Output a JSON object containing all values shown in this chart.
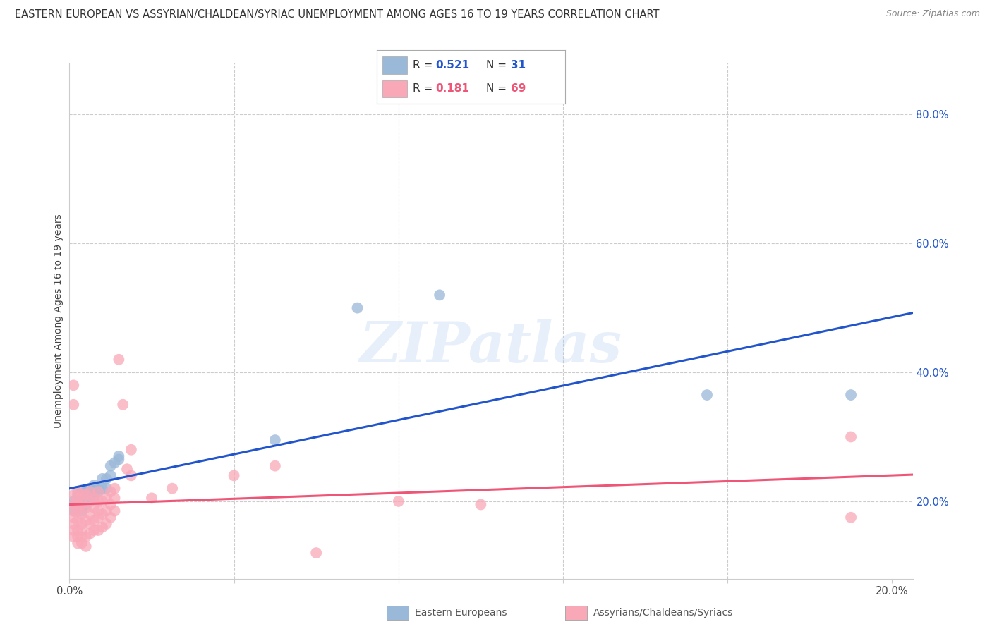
{
  "title": "EASTERN EUROPEAN VS ASSYRIAN/CHALDEAN/SYRIAC UNEMPLOYMENT AMONG AGES 16 TO 19 YEARS CORRELATION CHART",
  "source": "Source: ZipAtlas.com",
  "ylabel": "Unemployment Among Ages 16 to 19 years",
  "right_ytick_vals": [
    0.2,
    0.4,
    0.6,
    0.8
  ],
  "right_ytick_labels": [
    "20.0%",
    "40.0%",
    "60.0%",
    "80.0%"
  ],
  "watermark": "ZIPatlas",
  "legend_blue_R": "0.521",
  "legend_blue_N": "31",
  "legend_pink_R": "0.181",
  "legend_pink_N": "69",
  "legend_label_blue": "Eastern Europeans",
  "legend_label_pink": "Assyrians/Chaldeans/Syriacs",
  "blue_scatter_color": "#9AB8D8",
  "pink_scatter_color": "#F9A8B8",
  "blue_line_color": "#2255CC",
  "pink_line_color": "#EE5577",
  "background_color": "#FFFFFF",
  "grid_color": "#CCCCCC",
  "title_fontsize": 10.5,
  "blue_x": [
    0.001,
    0.001,
    0.002,
    0.002,
    0.003,
    0.003,
    0.003,
    0.004,
    0.004,
    0.005,
    0.005,
    0.005,
    0.006,
    0.006,
    0.006,
    0.007,
    0.007,
    0.008,
    0.008,
    0.009,
    0.009,
    0.01,
    0.01,
    0.011,
    0.012,
    0.012,
    0.05,
    0.07,
    0.09,
    0.155,
    0.19
  ],
  "blue_y": [
    0.185,
    0.2,
    0.195,
    0.21,
    0.185,
    0.205,
    0.215,
    0.195,
    0.215,
    0.2,
    0.215,
    0.22,
    0.205,
    0.215,
    0.225,
    0.215,
    0.22,
    0.22,
    0.235,
    0.22,
    0.235,
    0.24,
    0.255,
    0.26,
    0.265,
    0.27,
    0.295,
    0.5,
    0.52,
    0.365,
    0.365
  ],
  "pink_x": [
    0.001,
    0.001,
    0.001,
    0.001,
    0.001,
    0.001,
    0.001,
    0.001,
    0.001,
    0.002,
    0.002,
    0.002,
    0.002,
    0.002,
    0.002,
    0.002,
    0.002,
    0.003,
    0.003,
    0.003,
    0.003,
    0.003,
    0.003,
    0.003,
    0.004,
    0.004,
    0.004,
    0.004,
    0.004,
    0.005,
    0.005,
    0.005,
    0.005,
    0.005,
    0.006,
    0.006,
    0.006,
    0.006,
    0.007,
    0.007,
    0.007,
    0.007,
    0.007,
    0.008,
    0.008,
    0.008,
    0.009,
    0.009,
    0.009,
    0.01,
    0.01,
    0.01,
    0.011,
    0.011,
    0.011,
    0.012,
    0.013,
    0.014,
    0.015,
    0.015,
    0.02,
    0.025,
    0.04,
    0.05,
    0.06,
    0.08,
    0.1,
    0.19,
    0.19
  ],
  "pink_y": [
    0.145,
    0.155,
    0.165,
    0.175,
    0.185,
    0.195,
    0.21,
    0.35,
    0.38,
    0.135,
    0.145,
    0.155,
    0.17,
    0.185,
    0.195,
    0.205,
    0.215,
    0.135,
    0.145,
    0.155,
    0.165,
    0.18,
    0.195,
    0.21,
    0.13,
    0.145,
    0.17,
    0.19,
    0.21,
    0.15,
    0.165,
    0.18,
    0.2,
    0.215,
    0.155,
    0.17,
    0.19,
    0.205,
    0.155,
    0.175,
    0.185,
    0.2,
    0.215,
    0.16,
    0.18,
    0.2,
    0.165,
    0.185,
    0.205,
    0.175,
    0.195,
    0.215,
    0.185,
    0.205,
    0.22,
    0.42,
    0.35,
    0.25,
    0.24,
    0.28,
    0.205,
    0.22,
    0.24,
    0.255,
    0.12,
    0.2,
    0.195,
    0.3,
    0.175
  ],
  "xmin": 0.0,
  "xmax": 0.205,
  "ymin": 0.08,
  "ymax": 0.88,
  "xtick_positions": [
    0.0,
    0.04,
    0.08,
    0.12,
    0.16,
    0.2
  ],
  "xtick_labels": [
    "0.0%",
    "",
    "",
    "",
    "",
    "20.0%"
  ]
}
